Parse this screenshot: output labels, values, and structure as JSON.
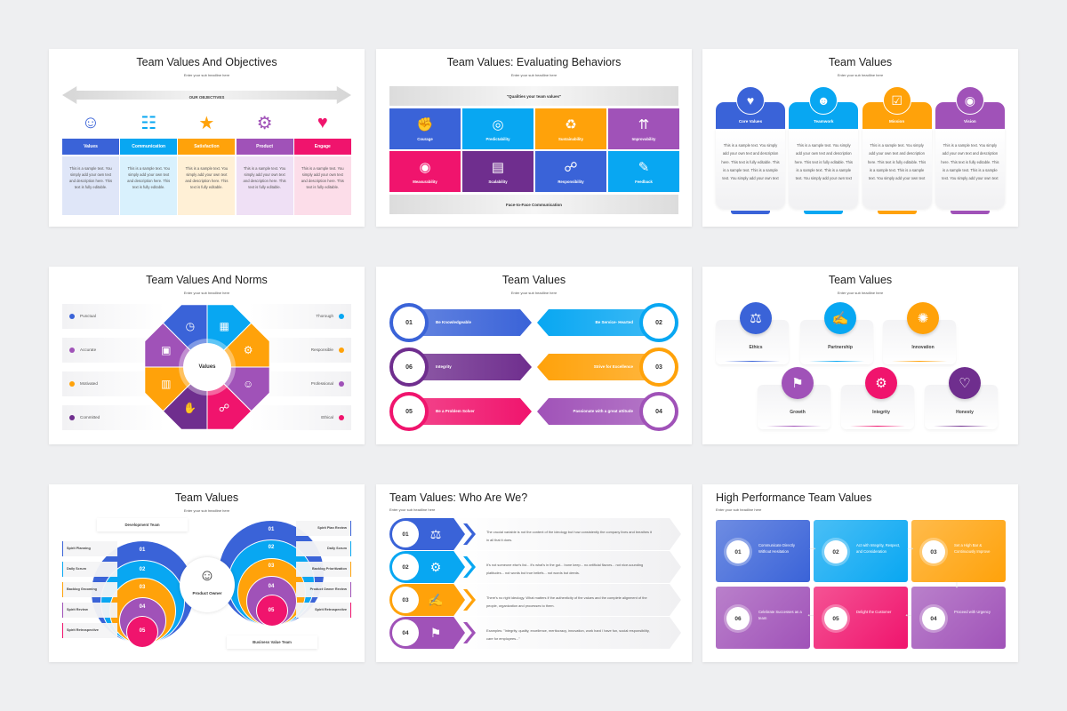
{
  "colors": {
    "blue": "#3a63d8",
    "cyan": "#08a7f2",
    "orange": "#ffa20a",
    "purple": "#a052b8",
    "pink": "#f0146d",
    "darkpurple": "#6f2e8e",
    "gray": "#e4e4e4"
  },
  "subheadline": "Enter your sub headline here",
  "slides": [
    {
      "title": "Team Values And Objectives",
      "banner": "OUR OBJECTIVES",
      "columns": [
        {
          "label": "Values",
          "color": "blue",
          "light": "#dfe6f8",
          "icon": "hands-star-person-icon",
          "glyph": "☺"
        },
        {
          "label": "Communication",
          "color": "cyan",
          "light": "#d9f1fd",
          "icon": "chat-people-icon",
          "glyph": "☷"
        },
        {
          "label": "Satisfaction",
          "color": "orange",
          "light": "#fff0d6",
          "icon": "stars-person-check-icon",
          "glyph": "★"
        },
        {
          "label": "Product",
          "color": "purple",
          "light": "#efe0f5",
          "icon": "box-lightbulb-gear-icon",
          "glyph": "⚙"
        },
        {
          "label": "Engage",
          "color": "pink",
          "light": "#fcdde9",
          "icon": "heart-like-chat-icon",
          "glyph": "♥"
        }
      ],
      "body": "This is a sample text. You simply add your own text and description here. This text is fully editable."
    },
    {
      "title": "Team Values: Evaluating Behaviors",
      "top_bar": "\"Qualities your team values\"",
      "bottom_bar": "Face-to-Face Communication",
      "cells": [
        {
          "label": "Courage",
          "color": "blue",
          "icon": "fist-icon",
          "glyph": "✊"
        },
        {
          "label": "Predictability",
          "color": "cyan",
          "icon": "head-chart-icon",
          "glyph": "◎"
        },
        {
          "label": "Sustainability",
          "color": "orange",
          "icon": "recycle-icon",
          "glyph": "♻"
        },
        {
          "label": "Improvability",
          "color": "purple",
          "icon": "arrows-up-gear-icon",
          "glyph": "⇈"
        },
        {
          "label": "Measurability",
          "color": "pink",
          "icon": "tape-measure-icon",
          "glyph": "◉"
        },
        {
          "label": "Scalability",
          "color": "darkpurple",
          "icon": "scale-layout-icon",
          "glyph": "▤"
        },
        {
          "label": "Responsibility",
          "color": "blue",
          "icon": "network-people-icon",
          "glyph": "☍"
        },
        {
          "label": "Feedback",
          "color": "cyan",
          "icon": "feedback-board-icon",
          "glyph": "✎"
        }
      ]
    },
    {
      "title": "Team Values",
      "cards": [
        {
          "label": "Core Values",
          "color": "blue",
          "icon": "heart-hand-icon",
          "glyph": "♥"
        },
        {
          "label": "Teamwork",
          "color": "cyan",
          "icon": "team-icon",
          "glyph": "☻"
        },
        {
          "label": "Mission",
          "color": "orange",
          "icon": "checklist-target-icon",
          "glyph": "☑"
        },
        {
          "label": "Vision",
          "color": "purple",
          "icon": "eye-icon",
          "glyph": "◉"
        }
      ],
      "body": "This is a sample text. You simply add your own text and description here. This text is fully editable. This is a sample text. This is a sample text. You simply add your own text"
    },
    {
      "title": "Team Values And Norms",
      "center": "Values",
      "left": [
        {
          "label": "Punctual",
          "color": "blue"
        },
        {
          "label": "Accurate",
          "color": "purple"
        },
        {
          "label": "Motivated",
          "color": "orange"
        },
        {
          "label": "Committed",
          "color": "darkpurple"
        }
      ],
      "right": [
        {
          "label": "Thorough",
          "color": "cyan"
        },
        {
          "label": "Responsible",
          "color": "orange"
        },
        {
          "label": "Professional",
          "color": "purple"
        },
        {
          "label": "Ethical",
          "color": "pink"
        }
      ],
      "wedges": [
        {
          "color": "cyan",
          "icon": "document-icon",
          "glyph": "▦"
        },
        {
          "color": "orange",
          "icon": "people-gear-icon",
          "glyph": "⚙"
        },
        {
          "color": "purple",
          "icon": "person-badge-icon",
          "glyph": "☺"
        },
        {
          "color": "pink",
          "icon": "network-icon",
          "glyph": "☍"
        },
        {
          "color": "darkpurple",
          "icon": "handshake-icon",
          "glyph": "✋"
        },
        {
          "color": "orange",
          "icon": "building-chart-icon",
          "glyph": "▥"
        },
        {
          "color": "purple",
          "icon": "presentation-icon",
          "glyph": "▣"
        },
        {
          "color": "blue",
          "icon": "clock-hand-icon",
          "glyph": "◷"
        }
      ]
    },
    {
      "title": "Team Values",
      "left": [
        {
          "num": "01",
          "label": "Be Knowledgeable",
          "color": "blue"
        },
        {
          "num": "06",
          "label": "Integrity",
          "color": "darkpurple"
        },
        {
          "num": "05",
          "label": "Be a Problem Solver",
          "color": "pink"
        }
      ],
      "right": [
        {
          "num": "02",
          "label": "Be Service- Hearted",
          "color": "cyan"
        },
        {
          "num": "03",
          "label": "Strive for Excellence",
          "color": "orange"
        },
        {
          "num": "04",
          "label": "Passionate with a great attitude",
          "color": "purple"
        }
      ]
    },
    {
      "title": "Team Values",
      "items": [
        {
          "label": "Ethics",
          "color": "blue",
          "icon": "scales-icon",
          "glyph": "⚖"
        },
        {
          "label": "Partnership",
          "color": "cyan",
          "icon": "contract-handshake-icon",
          "glyph": "✍"
        },
        {
          "label": "Innovation",
          "color": "orange",
          "icon": "lightbulb-gear-icon",
          "glyph": "✺"
        },
        {
          "label": "Growth",
          "color": "purple",
          "icon": "stairs-flag-icon",
          "glyph": "⚑"
        },
        {
          "label": "Integrity",
          "color": "pink",
          "icon": "gears-icon",
          "glyph": "⚙"
        },
        {
          "label": "Honesty",
          "color": "darkpurple",
          "icon": "heart-shield-icon",
          "glyph": "♡"
        }
      ]
    },
    {
      "title": "Team Values",
      "center": "Product Owner",
      "development_team": "Development Team",
      "business_team": "Business Value Team",
      "left": [
        "Spirit Planning",
        "Daily Scrum",
        "Backlog Grooming",
        "Spirit Review",
        "Spirit Retrospective"
      ],
      "right": [
        "Spirit Plan Review",
        "Daily Scrum",
        "Backlog Prioritization",
        "Product Owner Review",
        "Spirit Retrospective"
      ],
      "numbers": [
        "01",
        "02",
        "03",
        "04",
        "05"
      ],
      "ring_colors": [
        "blue",
        "cyan",
        "orange",
        "purple",
        "pink"
      ]
    },
    {
      "title": "Team Values: Who Are We?",
      "rows": [
        {
          "num": "01",
          "color": "blue",
          "icon": "scales-icon",
          "glyph": "⚖",
          "text": "The crucial variable is not the content of the ideology but how consistently the company lives and breathes it in all that it does."
        },
        {
          "num": "02",
          "color": "cyan",
          "icon": "gears-head-icon",
          "glyph": "⚙",
          "text": "It's not someone else's list... it's what's in the gut... bone keep... no artificial flavors... not nice-sounding platitudes... not words but true beliefs... not words but deeds."
        },
        {
          "num": "03",
          "color": "orange",
          "icon": "contract-icon",
          "glyph": "✍",
          "text": "There's no right ideology. What matters if the authenticity of the values and the complete alignment of the people, organization and processes to them."
        },
        {
          "num": "04",
          "color": "purple",
          "icon": "stairs-flag-icon",
          "glyph": "⚑",
          "text": "Examples: \"Integrity, quality, excellence, meritocracy, innovation, work hard / have fun, social responsibility, care for employees...\""
        }
      ]
    },
    {
      "title": "High Performance Team Values",
      "boxes": [
        {
          "num": "01",
          "color": "blue",
          "text": "Communicate Directly Without Hesitation"
        },
        {
          "num": "02",
          "color": "cyan",
          "text": "Act with Integrity, Respect, and Consideration"
        },
        {
          "num": "03",
          "color": "orange",
          "text": "Set a High Bar & Continuously Improve"
        },
        {
          "num": "06",
          "color": "purple",
          "text": "Celebrate Successes as a team"
        },
        {
          "num": "05",
          "color": "pink",
          "text": "Delight the Customer"
        },
        {
          "num": "04",
          "color": "purple",
          "text": "Proceed with Urgency"
        }
      ]
    }
  ]
}
